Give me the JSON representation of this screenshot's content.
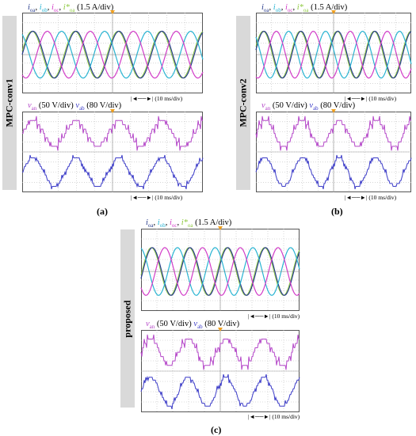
{
  "panels": [
    {
      "key": "a",
      "side_label": "MPC-conv1",
      "sub_label": "(a)",
      "top_caption": {
        "vars": [
          "i",
          "i",
          "i",
          "i*"
        ],
        "subs": [
          "oa",
          "ob",
          "oc",
          "oa"
        ],
        "scale": "(1.5 A/div)"
      },
      "bottom_caption": {
        "v1": "v",
        "s1": "an",
        "scale1": "(50 V/div)",
        "v2": "v",
        "s2": "ab",
        "scale2": "(80 V/div)"
      },
      "time_div": "(10 ms/div)"
    },
    {
      "key": "b",
      "side_label": "MPC-conv2",
      "sub_label": "(b)",
      "top_caption": {
        "vars": [
          "i",
          "i",
          "i",
          "i*"
        ],
        "subs": [
          "oa",
          "ob",
          "oc",
          "oa"
        ],
        "scale": "(1.5 A/div)"
      },
      "bottom_caption": {
        "v1": "v",
        "s1": "an",
        "scale1": "(50 V/div)",
        "v2": "v",
        "s2": "ab",
        "scale2": "(80 V/div)"
      },
      "time_div": "(10 ms/div)"
    },
    {
      "key": "c",
      "side_label": "proposed",
      "sub_label": "(c)",
      "top_caption": {
        "vars": [
          "i",
          "i",
          "i",
          "i*"
        ],
        "subs": [
          "oa",
          "ob",
          "oc",
          "oa"
        ],
        "scale": "(1.5 A/div)"
      },
      "bottom_caption": {
        "v1": "v",
        "s1": "an",
        "scale1": "(50 V/div)",
        "v2": "v",
        "s2": "ab",
        "scale2": "(80 V/div)"
      },
      "time_div": "(10 ms/div)"
    }
  ],
  "colors": {
    "ioa": "#283c8c",
    "iob": "#28b4d2",
    "ioc": "#d23cc8",
    "ioa_ref": "#8cc83c",
    "van": "#b446c8",
    "vab": "#3c3cc8",
    "grid": "#bdbdbd",
    "scope_border": "#555555",
    "side_label_bg": "#d9d9d9"
  },
  "chart_data": [
    {
      "type": "line",
      "title": "",
      "xlabel": "",
      "ylabel": "",
      "series": [
        {
          "name": "i_oa",
          "x": [
            0,
            10,
            20,
            30,
            40,
            50,
            60,
            70,
            80,
            90,
            100
          ],
          "values": [
            0,
            1.8,
            3.0,
            2.6,
            0.9,
            -1.2,
            -2.8,
            -2.9,
            -1.3,
            0.8,
            2.5
          ]
        },
        {
          "name": "i_ob",
          "x": [
            0,
            10,
            20,
            30,
            40,
            50,
            60,
            70,
            80,
            90,
            100
          ],
          "values": [
            -2.6,
            -1.1,
            0.9,
            2.6,
            3.0,
            1.9,
            -0.2,
            -2.1,
            -3.0,
            -2.4,
            -0.6
          ]
        },
        {
          "name": "i_oc",
          "x": [
            0,
            10,
            20,
            30,
            40,
            50,
            60,
            70,
            80,
            90,
            100
          ],
          "values": [
            2.6,
            2.9,
            1.6,
            -0.5,
            -2.4,
            -3.0,
            -2.0,
            0.1,
            2.1,
            3.0,
            2.3
          ]
        },
        {
          "name": "v_an",
          "x": [
            0,
            10,
            20,
            30,
            40,
            50,
            60,
            70,
            80,
            90,
            100
          ],
          "values": [
            0,
            100,
            150,
            75,
            -50,
            -125,
            -150,
            -50,
            50,
            125,
            100
          ]
        },
        {
          "name": "v_ab",
          "x": [
            0,
            10,
            20,
            30,
            40,
            50,
            60,
            70,
            80,
            90,
            100
          ],
          "values": [
            80,
            240,
            200,
            0,
            -200,
            -240,
            -120,
            80,
            240,
            200,
            0
          ]
        }
      ]
    }
  ]
}
